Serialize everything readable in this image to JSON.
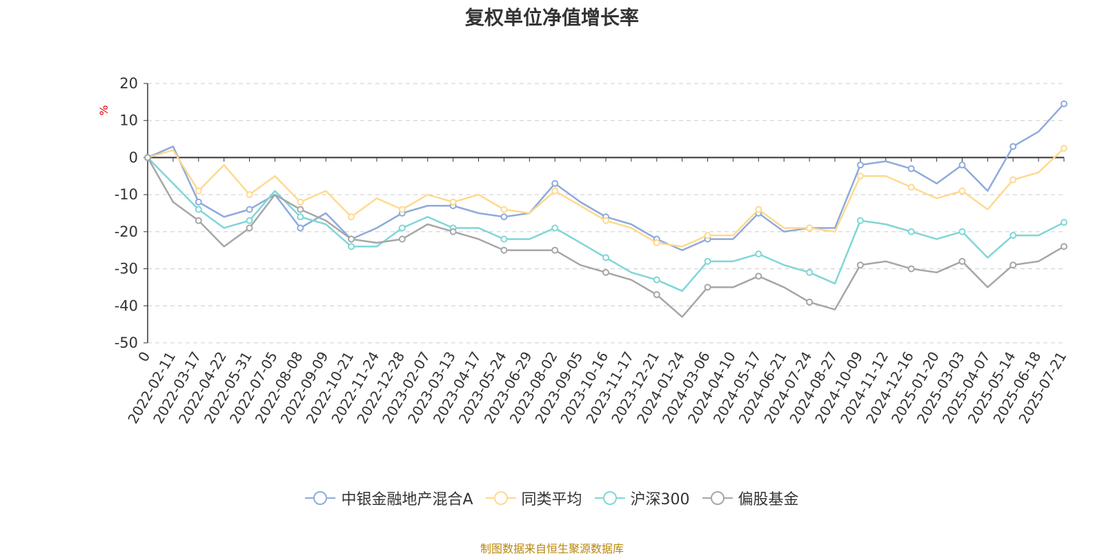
{
  "chart_data": {
    "type": "line",
    "title": "复权单位净值增长率",
    "ylabel": "%",
    "ylim": [
      -50,
      20
    ],
    "yticks": [
      20,
      10,
      0,
      -10,
      -20,
      -30,
      -40,
      -50
    ],
    "xtick_labels": [
      "0",
      "2022-02-11",
      "2022-03-17",
      "2022-04-22",
      "2022-05-31",
      "2022-07-05",
      "2022-08-08",
      "2022-09-09",
      "2022-10-21",
      "2022-11-24",
      "2022-12-28",
      "2023-02-07",
      "2023-03-13",
      "2023-04-17",
      "2023-05-24",
      "2023-06-29",
      "2023-08-02",
      "2023-09-05",
      "2023-10-16",
      "2023-11-17",
      "2023-12-21",
      "2024-01-24",
      "2024-03-06",
      "2024-04-10",
      "2024-05-17",
      "2024-06-21",
      "2024-07-24",
      "2024-08-27",
      "2024-10-09",
      "2024-11-12",
      "2024-12-16",
      "2025-01-20",
      "2025-03-03",
      "2025-04-07",
      "2025-05-14",
      "2025-06-18",
      "2025-07-21"
    ],
    "grid": true,
    "legend_position": "bottom",
    "series": [
      {
        "name": "中银金融地产混合A",
        "color": "#8eaadb",
        "values": [
          0,
          3,
          -12,
          -16,
          -14,
          -10,
          -19,
          -15,
          -22,
          -19,
          -15,
          -13,
          -13,
          -15,
          -16,
          -15,
          -7,
          -12,
          -16,
          -18,
          -22,
          -25,
          -22,
          -22,
          -15,
          -20,
          -19,
          -19,
          -2,
          -1,
          -3,
          -7,
          -2,
          -9,
          3,
          7,
          14.5
        ]
      },
      {
        "name": "同类平均",
        "color": "#ffd98e",
        "values": [
          0,
          2,
          -9,
          -2,
          -10,
          -5,
          -12,
          -9,
          -16,
          -11,
          -14,
          -10,
          -12,
          -10,
          -14,
          -15,
          -9,
          -13,
          -17,
          -19,
          -23,
          -24,
          -21,
          -21,
          -14,
          -19,
          -19,
          -20,
          -5,
          -5,
          -8,
          -11,
          -9,
          -14,
          -6,
          -4,
          2.5
        ]
      },
      {
        "name": "沪深300",
        "color": "#7fd6d6",
        "values": [
          0,
          -7,
          -14,
          -19,
          -17,
          -9,
          -16,
          -18,
          -24,
          -24,
          -19,
          -16,
          -19,
          -19,
          -22,
          -22,
          -19,
          -23,
          -27,
          -31,
          -33,
          -36,
          -28,
          -28,
          -26,
          -29,
          -31,
          -34,
          -17,
          -18,
          -20,
          -22,
          -20,
          -27,
          -21,
          -21,
          -17.5
        ]
      },
      {
        "name": "偏股基金",
        "color": "#a6a6a6",
        "values": [
          0,
          -12,
          -17,
          -24,
          -19,
          -10,
          -14,
          -17,
          -22,
          -23,
          -22,
          -18,
          -20,
          -22,
          -25,
          -25,
          -25,
          -29,
          -31,
          -33,
          -37,
          -43,
          -35,
          -35,
          -32,
          -35,
          -39,
          -41,
          -29,
          -28,
          -30,
          -31,
          -28,
          -35,
          -29,
          -28,
          -24
        ]
      }
    ]
  },
  "source_note": "制图数据来自恒生聚源数据库"
}
